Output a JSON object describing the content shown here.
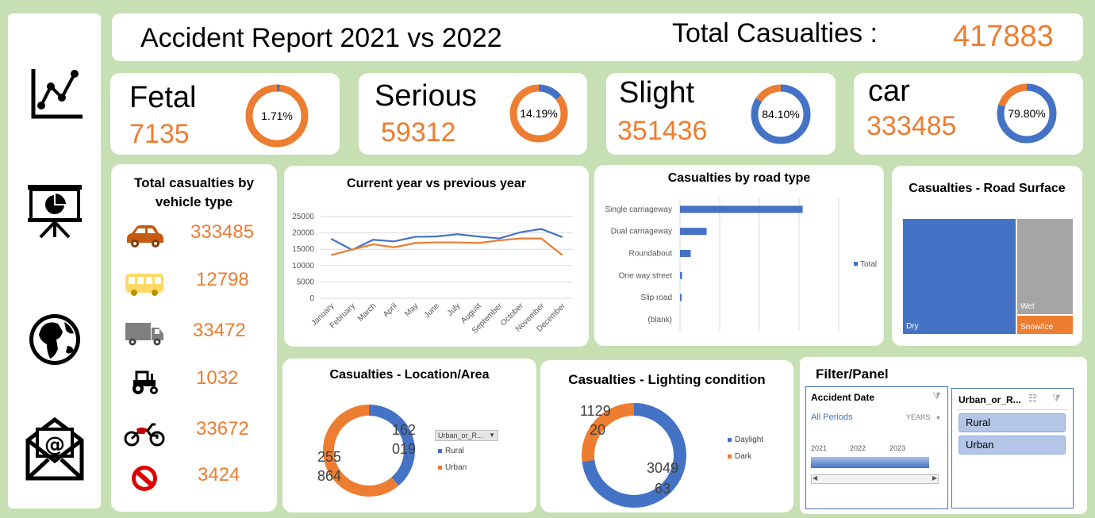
{
  "header": {
    "title": "Accident Report 2021 vs 2022",
    "total_label": "Total Casualties :",
    "total_value": "417883"
  },
  "sidebar": {
    "icons": [
      "line-chart-icon",
      "presentation-pie-icon",
      "globe-icon",
      "mail-icon"
    ]
  },
  "kpis": [
    {
      "label": "Fetal",
      "value": "7135",
      "percent": "1.71%",
      "fraction": 0.0171,
      "fill_color": "#4472c4",
      "rest_color": "#ed7d31"
    },
    {
      "label": "Serious",
      "value": "59312",
      "percent": "14.19%",
      "fraction": 0.1419,
      "fill_color": "#4472c4",
      "rest_color": "#ed7d31"
    },
    {
      "label": "Slight",
      "value": "351436",
      "percent": "84.10%",
      "fraction": 0.841,
      "fill_color": "#4472c4",
      "rest_color": "#ed7d31"
    },
    {
      "label": "car",
      "value": "333485",
      "percent": "79.80%",
      "fraction": 0.798,
      "fill_color": "#4472c4",
      "rest_color": "#ed7d31"
    }
  ],
  "vehicle_type": {
    "title_line1": "Total casualties by",
    "title_line2": "vehicle type",
    "items": [
      {
        "icon": "car-icon",
        "value": "333485"
      },
      {
        "icon": "bus-icon",
        "value": "12798"
      },
      {
        "icon": "truck-icon",
        "value": "33472"
      },
      {
        "icon": "tractor-icon",
        "value": "1032"
      },
      {
        "icon": "motorcycle-icon",
        "value": "33672"
      },
      {
        "icon": "no-entry-icon",
        "value": "3424"
      }
    ]
  },
  "chart_data": [
    {
      "type": "line",
      "title": "Current year vs previous year",
      "categories": [
        "January",
        "February",
        "March",
        "April",
        "May",
        "June",
        "July",
        "August",
        "September",
        "October",
        "November",
        "December"
      ],
      "yticks": [
        "0",
        "5000",
        "10000",
        "15000",
        "20000",
        "25000"
      ],
      "ylim": [
        0,
        25000
      ],
      "grid": true,
      "series": [
        {
          "values": [
            18200,
            14800,
            17900,
            17400,
            18800,
            18900,
            19600,
            18900,
            18300,
            20200,
            21200,
            18700
          ],
          "color": "#4472c4"
        },
        {
          "values": [
            13200,
            14900,
            16500,
            15600,
            16900,
            17100,
            17100,
            16900,
            17700,
            18300,
            18300,
            13200
          ],
          "color": "#ed7d31"
        }
      ]
    },
    {
      "type": "bar",
      "orientation": "horizontal",
      "title": "Casualties by road type",
      "categories": [
        "Single carriageway",
        "Dual carriageway",
        "Roundabout",
        "One way street",
        "Slip road",
        "(blank)"
      ],
      "values": [
        309000,
        67000,
        27000,
        5000,
        4000,
        0
      ],
      "xlim": [
        0,
        400000
      ],
      "legend": "Total",
      "legend_position": "right",
      "color": "#4472c4"
    },
    {
      "type": "treemap",
      "title": "Casualties - Road Surface",
      "labels": [
        "Dry",
        "Wet",
        "Snow/Ice"
      ],
      "colors": [
        "#4472c4",
        "#a5a5a5",
        "#ed7d31"
      ]
    },
    {
      "type": "pie",
      "donut": true,
      "title": "Casualties - Location/Area",
      "legend_header": "Urban_or_R...",
      "legend_position": "right",
      "series": [
        {
          "name": "Rural",
          "value": 162019,
          "label_line1": "162",
          "label_line2": "019",
          "color": "#4472c4"
        },
        {
          "name": "Urban",
          "value": 255864,
          "label_line1": "255",
          "label_line2": "864",
          "color": "#ed7d31"
        }
      ]
    },
    {
      "type": "pie",
      "donut": true,
      "title": "Casualties - Lighting condition",
      "legend_position": "right",
      "series": [
        {
          "name": "Daylight",
          "value": 304963,
          "label_line1": "3049",
          "label_line2": "63",
          "color": "#4472c4"
        },
        {
          "name": "Dark",
          "value": 112920,
          "label_line1": "1129",
          "label_line2": "20",
          "color": "#ed7d31"
        }
      ]
    }
  ],
  "filter": {
    "title": "Filter/Panel",
    "date_slicer": {
      "header": "Accident Date",
      "periods": "All Periods",
      "unit": "YEARS",
      "years": [
        "2021",
        "2022",
        "2023"
      ]
    },
    "area_slicer": {
      "header": "Urban_or_R...",
      "options": [
        "Rural",
        "Urban"
      ]
    }
  }
}
